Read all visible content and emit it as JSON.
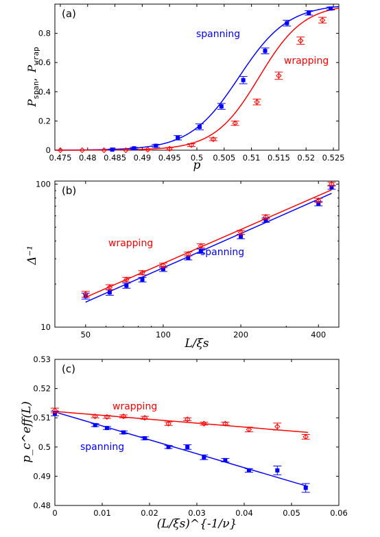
{
  "colors": {
    "spanning": "#0000ff",
    "wrapping": "#ff0000",
    "axis": "#000000"
  },
  "chart_data": [
    {
      "panel_label": "(a)",
      "type": "line",
      "xlabel": "p",
      "ylabel_main": "P",
      "ylabel_sub1": "span",
      "ylabel_sep": ",",
      "ylabel_sub2": "wrap",
      "xlim": [
        0.474,
        0.526
      ],
      "ylim": [
        0,
        1.0
      ],
      "xticks": [
        "0.475",
        "0.48",
        "0.485",
        "0.49",
        "0.495",
        "0.5",
        "0.505",
        "0.51",
        "0.515",
        "0.52",
        "0.525"
      ],
      "xtick_values": [
        0.475,
        0.48,
        0.485,
        0.49,
        0.495,
        0.5,
        0.505,
        0.51,
        0.515,
        0.52,
        0.525
      ],
      "yticks": [
        "0",
        "0.2",
        "0.4",
        "0.6",
        "0.8"
      ],
      "ytick_values": [
        0,
        0.2,
        0.4,
        0.6,
        0.8
      ],
      "annotations": [
        {
          "text": "spanning",
          "series": "spanning"
        },
        {
          "text": "wrapping",
          "series": "wrapping"
        }
      ],
      "series": [
        {
          "name": "spanning",
          "x": [
            0.4845,
            0.4885,
            0.4925,
            0.4965,
            0.5005,
            0.5045,
            0.5085,
            0.5125,
            0.5165,
            0.5205,
            0.5245
          ],
          "y": [
            0.004,
            0.013,
            0.03,
            0.085,
            0.16,
            0.3,
            0.48,
            0.68,
            0.87,
            0.94,
            0.97
          ],
          "err": [
            0.004,
            0.006,
            0.01,
            0.015,
            0.02,
            0.02,
            0.025,
            0.02,
            0.02,
            0.015,
            0.01
          ]
        },
        {
          "name": "wrapping",
          "x": [
            0.475,
            0.479,
            0.483,
            0.487,
            0.491,
            0.495,
            0.499,
            0.503,
            0.507,
            0.511,
            0.515,
            0.519,
            0.523,
            0.527
          ],
          "y": [
            0.0,
            0.0,
            0.0,
            0.0,
            0.004,
            0.01,
            0.035,
            0.075,
            0.185,
            0.33,
            0.51,
            0.75,
            0.89,
            0.95
          ],
          "err": [
            0.0,
            0.0,
            0.0,
            0.0,
            0.004,
            0.008,
            0.01,
            0.01,
            0.015,
            0.02,
            0.025,
            0.025,
            0.02,
            0.015
          ]
        }
      ]
    },
    {
      "panel_label": "(b)",
      "type": "line",
      "log_x": true,
      "log_y": true,
      "xlabel": "L/ξs",
      "ylabel": "Δ⁻¹",
      "xlim": [
        38,
        480
      ],
      "ylim": [
        10,
        105
      ],
      "xticks": [
        "50",
        "100",
        "200",
        "400"
      ],
      "xtick_values": [
        50,
        100,
        200,
        400
      ],
      "yticks": [
        "10",
        "100"
      ],
      "ytick_values": [
        10,
        100
      ],
      "annotations": [
        {
          "text": "wrapping",
          "series": "wrapping"
        },
        {
          "text": "spanning",
          "series": "spanning"
        }
      ],
      "series": [
        {
          "name": "spanning",
          "x": [
            50,
            62,
            72,
            83,
            100,
            125,
            140,
            200,
            250,
            400,
            450
          ],
          "y": [
            16.5,
            17.5,
            19.5,
            21.5,
            25.5,
            30.5,
            34,
            43,
            56,
            73,
            95
          ],
          "err": [
            0.8,
            0.8,
            0.8,
            0.8,
            1,
            1,
            1.2,
            1.5,
            2,
            2.5,
            3
          ]
        },
        {
          "name": "wrapping",
          "x": [
            50,
            62,
            72,
            83,
            100,
            125,
            140,
            200,
            250,
            400,
            450
          ],
          "y": [
            17,
            19,
            21.5,
            24,
            27,
            32.5,
            37,
            46,
            59,
            77,
            100
          ],
          "err": [
            0.8,
            0.8,
            0.8,
            0.8,
            1,
            1,
            1.2,
            1.5,
            2,
            2.5,
            3
          ]
        }
      ]
    },
    {
      "panel_label": "(c)",
      "type": "line",
      "xlabel": "(L/ξs)^{-1/ν}",
      "ylabel": "p_c^eff(L)",
      "xlim": [
        0,
        0.06
      ],
      "ylim": [
        0.48,
        0.53
      ],
      "xticks": [
        "0",
        "0.01",
        "0.02",
        "0.03",
        "0.04",
        "0.05",
        "0.06"
      ],
      "xtick_values": [
        0,
        0.01,
        0.02,
        0.03,
        0.04,
        0.05,
        0.06
      ],
      "yticks": [
        "0.48",
        "0.49",
        "0.5",
        "0.51",
        "0.52",
        "0.53"
      ],
      "ytick_values": [
        0.48,
        0.49,
        0.5,
        0.51,
        0.52,
        0.53
      ],
      "annotations": [
        {
          "text": "wrapping",
          "series": "wrapping"
        },
        {
          "text": "spanning",
          "series": "spanning"
        }
      ],
      "series": [
        {
          "name": "spanning",
          "x": [
            0.0,
            0.0085,
            0.011,
            0.0145,
            0.019,
            0.024,
            0.028,
            0.0315,
            0.036,
            0.041,
            0.047,
            0.053
          ],
          "y": [
            0.5115,
            0.5075,
            0.5065,
            0.505,
            0.503,
            0.5,
            0.5,
            0.4965,
            0.4955,
            0.492,
            0.492,
            0.486
          ],
          "err": [
            0.0008,
            0.0005,
            0.0005,
            0.0005,
            0.0005,
            0.0005,
            0.0008,
            0.0008,
            0.0006,
            0.0006,
            0.0015,
            0.0015
          ]
        },
        {
          "name": "wrapping",
          "x": [
            0.0,
            0.0085,
            0.011,
            0.0145,
            0.019,
            0.024,
            0.028,
            0.0315,
            0.036,
            0.041,
            0.047,
            0.053
          ],
          "y": [
            0.5125,
            0.5105,
            0.5103,
            0.5105,
            0.51,
            0.508,
            0.5095,
            0.508,
            0.508,
            0.506,
            0.507,
            0.5035
          ],
          "err": [
            0.0008,
            0.0005,
            0.0005,
            0.0005,
            0.0005,
            0.0006,
            0.0005,
            0.0005,
            0.0005,
            0.0008,
            0.0012,
            0.0008
          ]
        }
      ],
      "fit_lines": [
        {
          "series": "spanning",
          "x": [
            0.0,
            0.0535
          ],
          "y": [
            0.512,
            0.4865
          ]
        },
        {
          "series": "wrapping",
          "x": [
            0.0,
            0.0535
          ],
          "y": [
            0.5122,
            0.505
          ]
        }
      ]
    }
  ]
}
